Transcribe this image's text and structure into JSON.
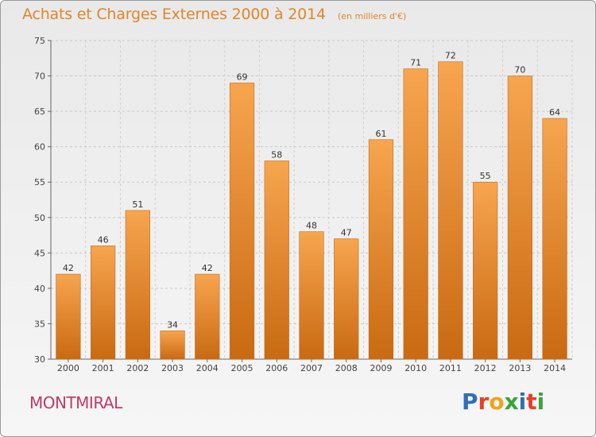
{
  "header": {
    "title": "Achats et Charges Externes 2000 à 2014",
    "subtitle": "(en milliers d'€)"
  },
  "footer": {
    "place": "MONTMIRAL",
    "logo_text": "Proxiti",
    "logo_colors": [
      "#2f6fb6",
      "#e5402a",
      "#f0a21a",
      "#3aa53a",
      "#2f6fb6",
      "#e5402a",
      "#3aa53a"
    ]
  },
  "colors": {
    "bar_top": "#f7a54f",
    "bar_bottom": "#c96a12",
    "bar_stroke": "#c56a1a",
    "title": "#e0862a",
    "place": "#c03c66"
  },
  "chart_data": {
    "type": "bar",
    "title": "Achats et Charges Externes 2000 à 2014",
    "subtitle": "(en milliers d'€)",
    "categories": [
      "2000",
      "2001",
      "2002",
      "2003",
      "2004",
      "2005",
      "2006",
      "2007",
      "2008",
      "2009",
      "2010",
      "2011",
      "2012",
      "2013",
      "2014"
    ],
    "values": [
      42,
      46,
      51,
      34,
      42,
      69,
      58,
      48,
      47,
      61,
      71,
      72,
      55,
      70,
      64
    ],
    "ylim": [
      30,
      75
    ],
    "yticks": [
      30,
      35,
      40,
      45,
      50,
      55,
      60,
      65,
      70,
      75
    ],
    "grid": true,
    "xlabel": "",
    "ylabel": ""
  }
}
